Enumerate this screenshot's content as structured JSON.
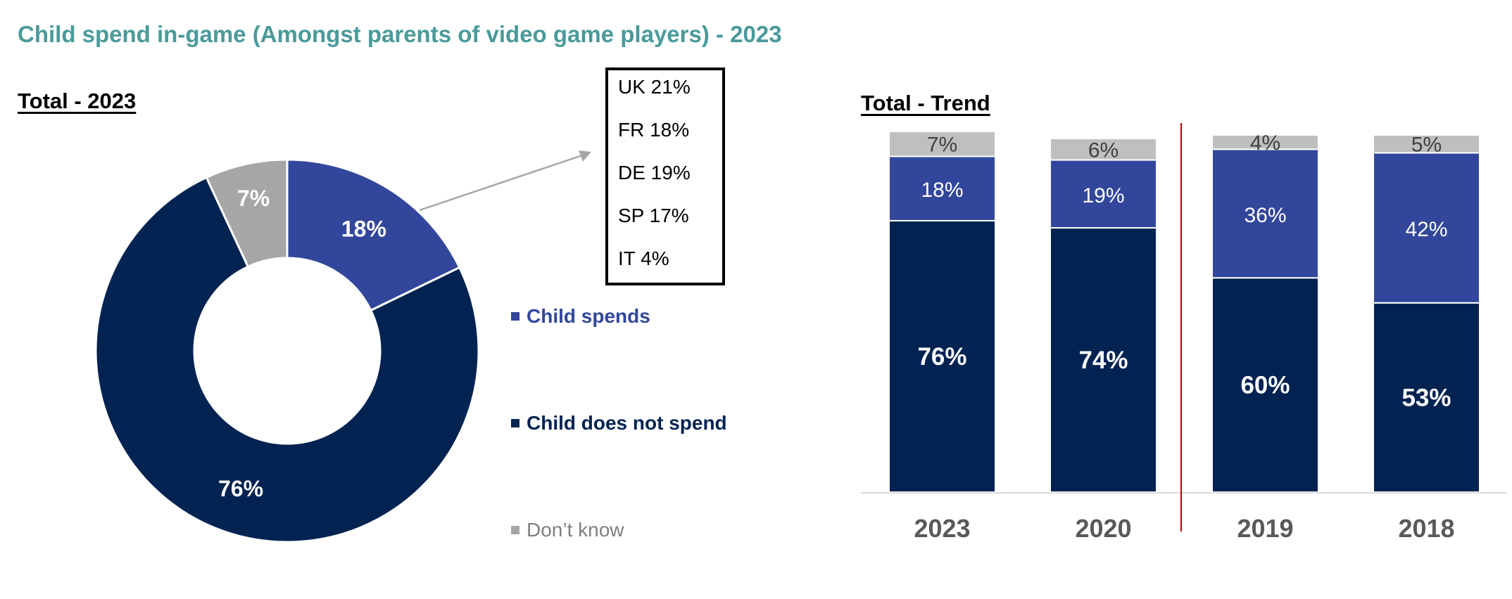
{
  "title": "Child spend in-game (Amongst parents of video game players) - 2023",
  "colors": {
    "title": "#4a9a9a",
    "spends": "#32479b",
    "not_spend": "#012352",
    "dont_know_donut": "#a6a6a6",
    "dont_know_bar": "#bfbfbf",
    "divider": "#c00000"
  },
  "callout": {
    "items": [
      "UK 21%",
      "FR 18%",
      "DE 19%",
      "SP 17%",
      "IT 4%"
    ]
  },
  "legend": [
    {
      "label": "Child spends",
      "color": "#32479b",
      "text_color": "#32479b"
    },
    {
      "label": "Child does not spend",
      "color": "#012352",
      "text_color": "#012352"
    },
    {
      "label": "Don’t know",
      "color": "#a6a6a6",
      "text_color": "#7f7f7f"
    }
  ],
  "chart_data": [
    {
      "type": "pie",
      "title": "Total - 2023",
      "donut": true,
      "slices": [
        {
          "name": "Child spends",
          "value": 18,
          "label": "18%"
        },
        {
          "name": "Child does not spend",
          "value": 76,
          "label": "76%"
        },
        {
          "name": "Don’t know",
          "value": 7,
          "label": "7%"
        }
      ]
    },
    {
      "type": "bar",
      "stacked": true,
      "title": "Total - Trend",
      "categories": [
        "2023",
        "2020",
        "2019",
        "2018"
      ],
      "ylim": [
        0,
        100
      ],
      "grid": false,
      "series": [
        {
          "name": "Child does not spend",
          "values": [
            76,
            74,
            60,
            53
          ],
          "labels": [
            "76%",
            "74%",
            "60%",
            "53%"
          ]
        },
        {
          "name": "Child spends",
          "values": [
            18,
            19,
            36,
            42
          ],
          "labels": [
            "18%",
            "19%",
            "36%",
            "42%"
          ]
        },
        {
          "name": "Don’t know",
          "values": [
            7,
            6,
            4,
            5
          ],
          "labels": [
            "7%",
            "6%",
            "4%",
            "5%"
          ]
        }
      ],
      "divider_after_category": "2020"
    }
  ]
}
